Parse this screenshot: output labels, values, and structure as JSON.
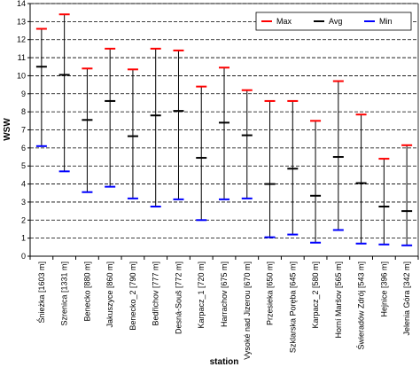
{
  "chart_data": {
    "type": "range",
    "xlabel": "station",
    "ylabel": "WSW",
    "ylim": [
      0,
      14
    ],
    "yticks": [
      0,
      1,
      2,
      3,
      4,
      5,
      6,
      7,
      8,
      9,
      10,
      11,
      12,
      13,
      14
    ],
    "grid": "horizontal dashed",
    "legend_position": "top-right",
    "categories": [
      "Śnieżka [1603 m]",
      "Szrenica [1331 m]",
      "Benecko [880 m]",
      "Jakuszyce [860 m]",
      "Benecko_2 [790 m]",
      "Bedřichov [777 m]",
      "Desná-Souš [772 m]",
      "Karpacz_1 [720 m]",
      "Harrachov [675 m]",
      "Vysoké nad Jizerou [670 m]",
      "Przesieka [650 m]",
      "Szklarska Poręba [645 m]",
      "Karpacz_2 [580 m]",
      "Horní Maršov [565 m]",
      "Świeradów Zdrój [543 m]",
      "Hejnice [396 m]",
      "Jelenia Góra [342 m]"
    ],
    "series": [
      {
        "name": "Max",
        "color": "#ff0000",
        "values": [
          12.6,
          13.4,
          10.4,
          11.5,
          10.35,
          11.5,
          11.4,
          9.4,
          10.45,
          9.2,
          8.6,
          8.6,
          7.5,
          9.7,
          7.85,
          5.4,
          6.15
        ]
      },
      {
        "name": "Avg",
        "color": "#000000",
        "values": [
          10.5,
          10.05,
          7.55,
          8.6,
          6.65,
          7.8,
          8.05,
          5.45,
          7.4,
          6.7,
          4.0,
          4.85,
          3.35,
          5.5,
          4.05,
          2.75,
          2.5
        ]
      },
      {
        "name": "Min",
        "color": "#0000ff",
        "values": [
          6.1,
          4.7,
          3.55,
          3.85,
          3.2,
          2.75,
          3.15,
          2.0,
          3.15,
          3.2,
          1.05,
          1.2,
          0.75,
          1.45,
          0.7,
          0.65,
          0.6
        ]
      }
    ]
  }
}
